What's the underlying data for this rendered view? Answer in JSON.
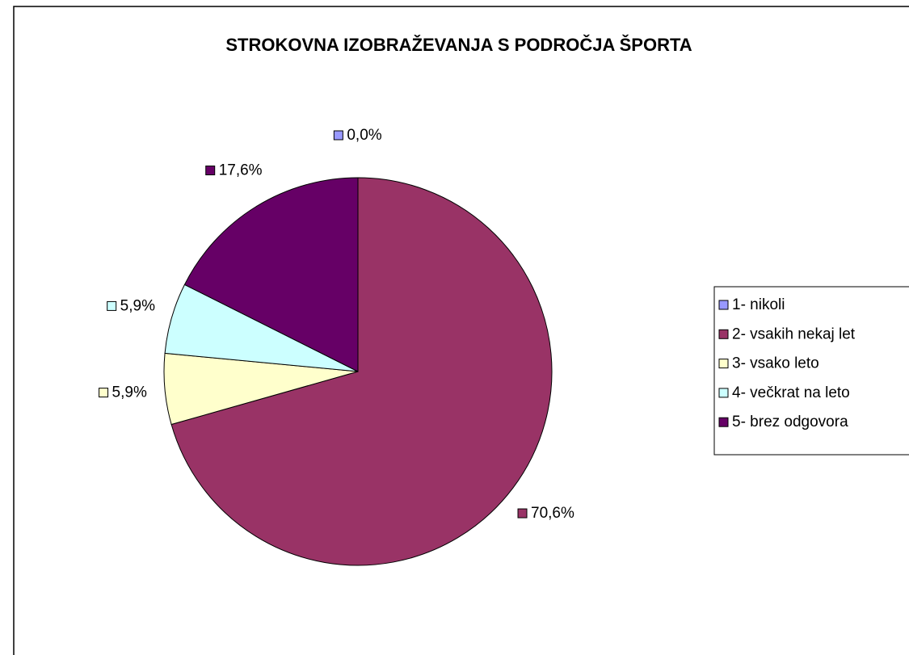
{
  "chart_data": {
    "type": "pie",
    "title": "STROKOVNA IZOBRAŽEVANJA S PODROČJA ŠPORTA",
    "categories": [
      "1- nikoli",
      "2- vsakih nekaj let",
      "3- vsako leto",
      "4- večkrat na leto",
      "5- brez odgovora"
    ],
    "values": [
      0.0,
      70.6,
      5.9,
      5.9,
      17.6
    ],
    "value_labels": [
      "0,0%",
      "70,6%",
      "5,9%",
      "5,9%",
      "17,6%"
    ],
    "colors": [
      "#9999ff",
      "#993366",
      "#ffffcc",
      "#ccffff",
      "#660066"
    ],
    "legend": "right"
  }
}
